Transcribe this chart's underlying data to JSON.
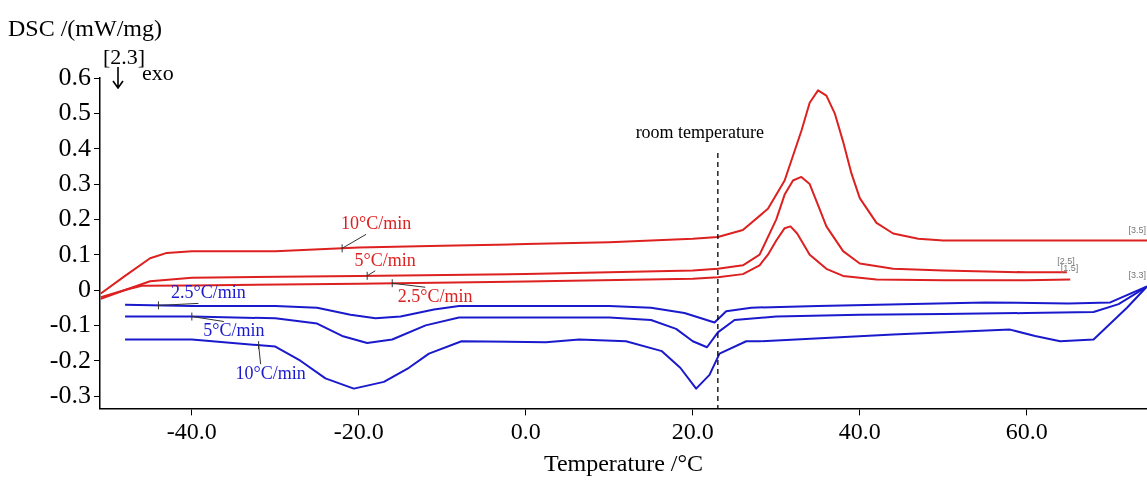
{
  "chart_data": {
    "type": "line",
    "xlabel": "Temperature /°C",
    "ylabel": "DSC /(mW/mg)",
    "xlim": [
      -51,
      74.4
    ],
    "ylim": [
      -0.335,
      0.6
    ],
    "xticks": [
      {
        "value": -40,
        "label": "-40.0"
      },
      {
        "value": -20,
        "label": "-20.0"
      },
      {
        "value": 0,
        "label": "0.0"
      },
      {
        "value": 20,
        "label": "20.0"
      },
      {
        "value": 40,
        "label": "40.0"
      },
      {
        "value": 60,
        "label": "60.0"
      }
    ],
    "yticks": [
      -0.3,
      -0.2,
      -0.1,
      0,
      0.1,
      0.2,
      0.3,
      0.4,
      0.5,
      0.6
    ],
    "grid": false,
    "legend": false,
    "marker": "none",
    "line_style": "solid",
    "series": [
      {
        "name": "10°C/min",
        "color": "#dd2020",
        "x": [
          -50.9,
          -48,
          -45,
          -43,
          -40,
          -30,
          -20,
          -10,
          0,
          10,
          20,
          23,
          26,
          29,
          31,
          33,
          34,
          35,
          36,
          37,
          38,
          39,
          40,
          42,
          44,
          47,
          50,
          60,
          74.4
        ],
        "values": [
          -0.01,
          0.04,
          0.09,
          0.105,
          0.11,
          0.11,
          0.12,
          0.125,
          0.13,
          0.135,
          0.145,
          0.15,
          0.17,
          0.23,
          0.31,
          0.45,
          0.53,
          0.565,
          0.55,
          0.5,
          0.42,
          0.33,
          0.26,
          0.19,
          0.16,
          0.145,
          0.14,
          0.14,
          0.14
        ]
      },
      {
        "name": "5°C/min",
        "color": "#dd2020",
        "x": [
          -50.9,
          -48,
          -45,
          -40,
          -20,
          0,
          20,
          23,
          26,
          28,
          30,
          31,
          32,
          33,
          34,
          35,
          36,
          38,
          40,
          44,
          50,
          60,
          64.8
        ],
        "values": [
          -0.025,
          0.0,
          0.025,
          0.035,
          0.04,
          0.045,
          0.055,
          0.06,
          0.07,
          0.1,
          0.2,
          0.27,
          0.31,
          0.32,
          0.3,
          0.24,
          0.18,
          0.11,
          0.075,
          0.06,
          0.055,
          0.05,
          0.05
        ]
      },
      {
        "name": "2.5°C/min",
        "color": "#dd2020",
        "x": [
          -50.9,
          -48,
          -46,
          -40,
          -20,
          0,
          20,
          23,
          26,
          28,
          29,
          30,
          31,
          31.7,
          32.5,
          34,
          36,
          38,
          42,
          50,
          60,
          65.2
        ],
        "values": [
          -0.02,
          0.0,
          0.012,
          0.013,
          0.018,
          0.024,
          0.032,
          0.036,
          0.045,
          0.07,
          0.1,
          0.14,
          0.175,
          0.18,
          0.16,
          0.1,
          0.06,
          0.04,
          0.03,
          0.028,
          0.028,
          0.03
        ]
      },
      {
        "name": "2.5°C/min",
        "color": "#1a1acc",
        "x": [
          -48,
          -40,
          -30,
          -25,
          -21,
          -18,
          -15,
          -11,
          -8,
          0,
          10,
          15,
          19,
          21,
          22.6,
          24,
          27,
          35,
          45,
          55,
          65,
          70,
          74.4
        ],
        "values": [
          -0.042,
          -0.045,
          -0.045,
          -0.05,
          -0.07,
          -0.08,
          -0.075,
          -0.055,
          -0.045,
          -0.045,
          -0.045,
          -0.05,
          -0.065,
          -0.08,
          -0.092,
          -0.06,
          -0.05,
          -0.045,
          -0.04,
          -0.035,
          -0.038,
          -0.035,
          0.01
        ]
      },
      {
        "name": "5°C/min",
        "color": "#1a1acc",
        "x": [
          -48,
          -40,
          -30,
          -25,
          -22,
          -19,
          -16,
          -12,
          -8,
          0,
          10,
          15,
          18,
          20,
          21.7,
          23,
          25,
          30,
          40,
          50,
          60,
          68,
          71,
          74.4
        ],
        "values": [
          -0.075,
          -0.075,
          -0.08,
          -0.095,
          -0.13,
          -0.15,
          -0.14,
          -0.1,
          -0.078,
          -0.078,
          -0.078,
          -0.085,
          -0.11,
          -0.145,
          -0.162,
          -0.12,
          -0.085,
          -0.075,
          -0.07,
          -0.068,
          -0.065,
          -0.062,
          -0.04,
          0.01
        ]
      },
      {
        "name": "10°C/min",
        "color": "#1a1acc",
        "x": [
          -48,
          -40,
          -30,
          -27,
          -24,
          -20.6,
          -17,
          -14,
          -11.6,
          -7.7,
          2.4,
          6.4,
          12,
          16.3,
          18.5,
          20.4,
          22,
          23.2,
          26.4,
          28,
          44,
          58,
          61,
          64,
          68,
          72,
          74.4
        ],
        "values": [
          -0.14,
          -0.14,
          -0.16,
          -0.2,
          -0.25,
          -0.279,
          -0.26,
          -0.22,
          -0.18,
          -0.145,
          -0.148,
          -0.14,
          -0.145,
          -0.173,
          -0.22,
          -0.279,
          -0.24,
          -0.18,
          -0.145,
          -0.145,
          -0.126,
          -0.112,
          -0.13,
          -0.145,
          -0.14,
          -0.05,
          0.01
        ]
      }
    ],
    "ref_lines": [
      {
        "axis": "x",
        "value": 23,
        "label": "room temperature",
        "color": "#000000",
        "line_style": "dashed"
      }
    ],
    "annotations": [
      "[2.3]",
      "exo",
      {
        "text": "[3.5]",
        "x": 74.4,
        "y": 0.14
      },
      {
        "text": "[2.5]",
        "x": 64.8,
        "y": 0.05
      },
      {
        "text": "[1.5]",
        "x": 65.2,
        "y": 0.03
      },
      {
        "text": "[3.3]",
        "x": 74.4,
        "y": 0.01
      }
    ]
  }
}
